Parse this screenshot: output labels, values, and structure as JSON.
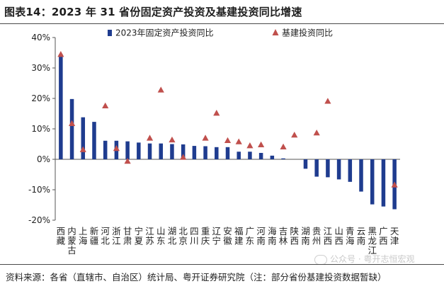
{
  "header": {
    "title": "图表14：2023 年 31 省份固定资产投资及基建投资同比增速"
  },
  "legend": {
    "series1": "2023年固定资产投资同比",
    "series2": "基建投资同比"
  },
  "footer": {
    "source": "资料来源：各省（直辖市、自治区）统计局、粤开证券研究院（注：部分省份基建投资数据暂缺）",
    "watermark": "公众号 · 粤开志恒宏观"
  },
  "colors": {
    "bar": "#1f3c8f",
    "triangle": "#c0504d",
    "axis": "#555555"
  },
  "chart_data": {
    "type": "bar",
    "categories": [
      "西藏",
      "内蒙古",
      "上海",
      "新疆",
      "河北",
      "浙江",
      "甘肃",
      "宁夏",
      "江苏",
      "山东",
      "湖北",
      "北京",
      "四川",
      "重庆",
      "辽宁",
      "安徽",
      "福建",
      "广东",
      "河南",
      "海南",
      "吉林",
      "陕西",
      "湖南",
      "贵州",
      "江西",
      "山西",
      "青海",
      "云南",
      "黑龙江",
      "广西",
      "天津"
    ],
    "series": [
      {
        "name": "2023年固定资产投资同比",
        "kind": "bar",
        "values": [
          34.5,
          19.8,
          13.8,
          12.3,
          6.1,
          6.1,
          5.9,
          5.5,
          5.2,
          5.2,
          5.0,
          4.9,
          4.4,
          4.3,
          4.0,
          4.0,
          2.5,
          2.5,
          2.1,
          1.2,
          0.3,
          0.0,
          -3.1,
          -5.7,
          -5.9,
          -6.6,
          -7.4,
          -10.6,
          -14.8,
          -15.5,
          -16.4
        ]
      },
      {
        "name": "基建投资同比",
        "kind": "triangle",
        "values": [
          34.5,
          11.8,
          3.2,
          null,
          17.6,
          3.6,
          -0.6,
          null,
          7.0,
          22.8,
          6.4,
          0.7,
          null,
          7.0,
          15.2,
          6.2,
          5.8,
          4.5,
          4.8,
          null,
          4.1,
          8.0,
          null,
          8.7,
          19.1,
          null,
          null,
          null,
          null,
          null,
          -8.4
        ]
      }
    ],
    "ylim": [
      -20,
      40
    ],
    "yticks": [
      -20,
      -10,
      0,
      10,
      20,
      30,
      40
    ],
    "ytick_labels": [
      "-20%",
      "-10%",
      "0%",
      "10%",
      "20%",
      "30%",
      "40%"
    ],
    "grid": false,
    "legend_position": "top"
  }
}
